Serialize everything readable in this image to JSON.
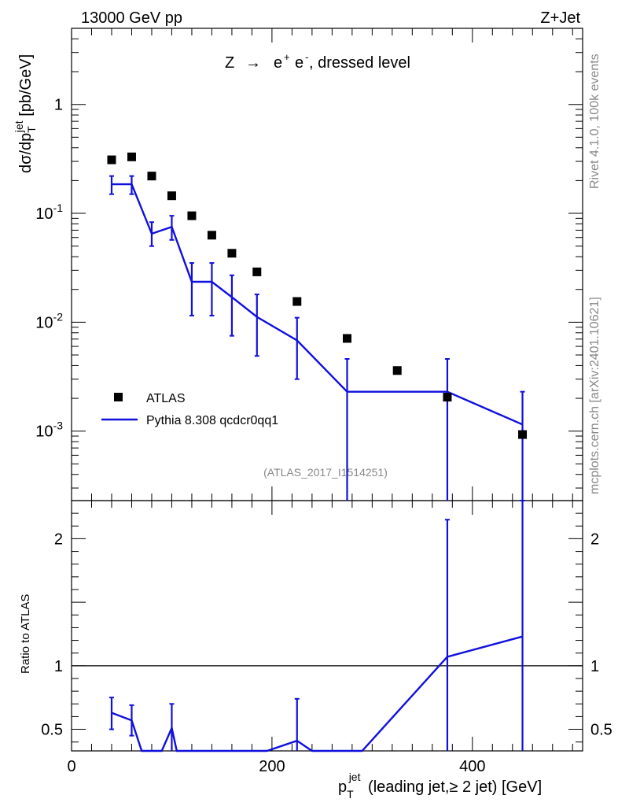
{
  "header": {
    "energy": "13000 GeV pp",
    "process": "Z+Jet",
    "title_prefix": "Z",
    "title_arrow": "→",
    "title_e": "e",
    "title_plus": "+",
    "title_e2": "e",
    "title_minus": "-",
    "title_suffix": ", dressed level"
  },
  "side": {
    "rivet": "Rivet 4.1.0,  100k events",
    "mcplots": "mcplots.cern.ch [arXiv:2401.10621]"
  },
  "analysis_id": "(ATLAS_2017_I1514251)",
  "axes": {
    "ylabel_main": {
      "d": "dσ/dp",
      "sub": "T",
      "sup": "jet",
      "unit": " [pb/GeV]"
    },
    "ylabel_ratio": "Ratio to ATLAS",
    "xlabel": {
      "p": "p",
      "sub": "T",
      "sup": "jet",
      "rest": " (leading jet,≥ 2 jet) [GeV]"
    }
  },
  "legend": {
    "data_label": "ATLAS",
    "mc_label": "Pythia 8.308 qcdcr0qq1"
  },
  "chart_data": {
    "type": "scatter",
    "x_range": [
      0,
      510
    ],
    "main_ylim": [
      0.00023,
      5
    ],
    "main_yscale": "log",
    "ratio_ylim": [
      0.33,
      2.3
    ],
    "ratio_yscale": "linear",
    "x_ticks": [
      "0",
      "200",
      "400"
    ],
    "main_y_ticks": [
      {
        "base": "10",
        "exp": "-3",
        "value": 0.001
      },
      {
        "base": "10",
        "exp": "-2",
        "value": 0.01
      },
      {
        "base": "10",
        "exp": "-1",
        "value": 0.1
      },
      {
        "base": "1",
        "exp": "",
        "value": 1
      }
    ],
    "ratio_y_ticks": [
      "0.5",
      "1",
      "2"
    ],
    "data": {
      "name": "ATLAS",
      "x": [
        40,
        60,
        80,
        100,
        120,
        140,
        160,
        185,
        225,
        275,
        325,
        375,
        450
      ],
      "y": [
        0.31,
        0.33,
        0.22,
        0.145,
        0.095,
        0.063,
        0.043,
        0.029,
        0.0155,
        0.0071,
        0.0036,
        0.00205,
        0.00093
      ]
    },
    "mc": {
      "name": "Pythia 8.308 qcdcr0qq1",
      "edges": [
        30,
        50,
        70,
        90,
        110,
        130,
        150,
        170,
        200,
        250,
        300,
        350,
        400,
        500
      ],
      "y": [
        0.185,
        0.185,
        0.065,
        0.075,
        0.0235,
        0.0235,
        0.017,
        0.0112,
        0.0068,
        0.0023,
        0.0023,
        0.0023,
        0.00115
      ],
      "err_points": [
        {
          "x": 40,
          "y": 0.185,
          "lo": 0.15,
          "hi": 0.22
        },
        {
          "x": 60,
          "y": 0.185,
          "lo": 0.15,
          "hi": 0.22
        },
        {
          "x": 80,
          "y": 0.065,
          "lo": 0.05,
          "hi": 0.083
        },
        {
          "x": 100,
          "y": 0.075,
          "lo": 0.057,
          "hi": 0.095
        },
        {
          "x": 120,
          "y": 0.0235,
          "lo": 0.0115,
          "hi": 0.035
        },
        {
          "x": 140,
          "y": 0.0235,
          "lo": 0.0115,
          "hi": 0.035
        },
        {
          "x": 160,
          "y": 0.017,
          "lo": 0.0075,
          "hi": 0.027
        },
        {
          "x": 185,
          "y": 0.0112,
          "lo": 0.0049,
          "hi": 0.018
        },
        {
          "x": 225,
          "y": 0.0068,
          "lo": 0.003,
          "hi": 0.011
        },
        {
          "x": 275,
          "y": 0.0023,
          "lo": 0.00023,
          "hi": 0.0046
        },
        {
          "x": 375,
          "y": 0.0023,
          "lo": 0.00023,
          "hi": 0.0046
        },
        {
          "x": 450,
          "y": 0.00115,
          "lo": 0.00023,
          "hi": 0.0023
        }
      ]
    },
    "ratio": {
      "line_x": [
        40,
        60,
        70,
        90,
        100,
        105,
        195,
        225,
        240,
        290,
        375,
        450
      ],
      "line_y": [
        0.63,
        0.57,
        0.33,
        0.33,
        0.51,
        0.33,
        0.33,
        0.41,
        0.33,
        0.33,
        1.07,
        1.23
      ],
      "err_points": [
        {
          "x": 40,
          "lo": 0.5,
          "hi": 0.75
        },
        {
          "x": 60,
          "lo": 0.45,
          "hi": 0.69
        },
        {
          "x": 100,
          "lo": 0.33,
          "hi": 0.7
        },
        {
          "x": 225,
          "lo": 0.33,
          "hi": 0.74
        },
        {
          "x": 375,
          "lo": 0.33,
          "hi": 2.15
        },
        {
          "x": 450,
          "lo": 0.33,
          "hi": 2.3
        }
      ]
    }
  }
}
